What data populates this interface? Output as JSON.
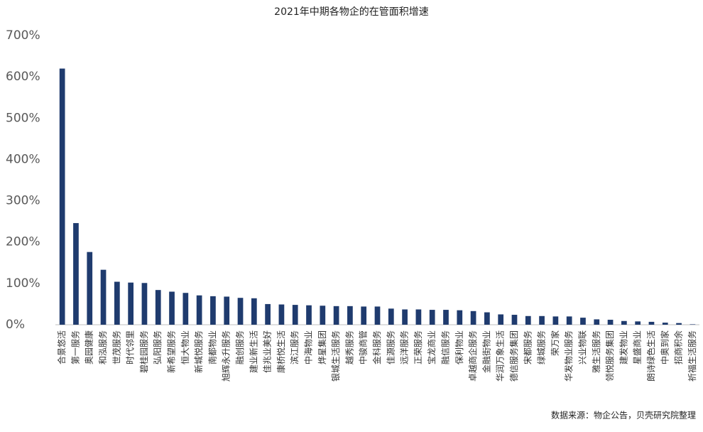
{
  "chart_data": {
    "type": "bar",
    "title": "2021年中期各物企的在管面积增速",
    "categories": [
      "合景悠活",
      "第一服务",
      "奥园健康",
      "和泓服务",
      "世茂服务",
      "时代邻里",
      "碧桂园服务",
      "弘阳服务",
      "新希望服务",
      "恒大物业",
      "新城悦服务",
      "南都物业",
      "旭辉永升服务",
      "融创服务",
      "建业新生活",
      "佳兆业美好",
      "康桥悦生活",
      "滨江服务",
      "中海物业",
      "烨星集团",
      "银城生活服务",
      "越秀服务",
      "中骏商管",
      "金科服务",
      "佳源服务",
      "远洋服务",
      "正荣服务",
      "宝龙商业",
      "融信服务",
      "保利物业",
      "卓越商企服务",
      "金融街物业",
      "华润万象生活",
      "德信服务集团",
      "宋都服务",
      "绿城服务",
      "荣万家",
      "华发物业服务",
      "兴业物联",
      "雅生活服务",
      "领悦服务集团",
      "建发物业",
      "星盛商业",
      "朗诗绿色生活",
      "中奥到家",
      "招商积余",
      "祈福生活服务"
    ],
    "values": [
      620,
      246,
      176,
      133,
      104,
      102,
      101,
      84,
      80,
      77,
      71,
      69,
      68,
      65,
      64,
      50,
      49,
      48,
      47,
      46,
      45,
      45,
      44,
      44,
      39,
      37,
      37,
      36,
      36,
      35,
      33,
      30,
      25,
      24,
      21,
      21,
      20,
      20,
      17,
      13,
      12,
      9,
      8,
      7,
      5,
      4,
      1
    ],
    "color": "#1f3b6e",
    "ylim": [
      0,
      700
    ],
    "yticks": [
      {
        "value": 0,
        "label": "0%"
      },
      {
        "value": 100,
        "label": "100%"
      },
      {
        "value": 200,
        "label": "200%"
      },
      {
        "value": 300,
        "label": "300%"
      },
      {
        "value": 400,
        "label": "400%"
      },
      {
        "value": 500,
        "label": "500%"
      },
      {
        "value": 600,
        "label": "600%"
      },
      {
        "value": 700,
        "label": "700%"
      }
    ],
    "source": "数据来源：物企公告，贝壳研究院整理"
  }
}
